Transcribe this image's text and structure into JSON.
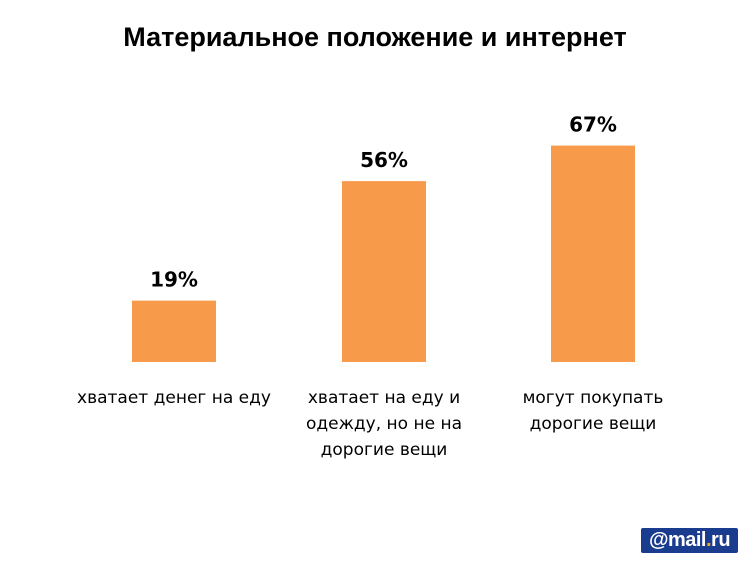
{
  "chart_data": {
    "type": "bar",
    "title": "Материальное положение и интернет",
    "categories": [
      "хватает денег на еду",
      "хватает на еду и одежду, но не на дорогие вещи",
      "могут покупать дорогие вещи"
    ],
    "values": [
      19,
      56,
      67
    ],
    "data_labels": [
      "19%",
      "56%",
      "67%"
    ],
    "unit": "%",
    "ylim": [
      0,
      100
    ],
    "bar_color": "#F79A4A",
    "grid": false
  },
  "logo": {
    "text": "@mail.ru",
    "bg": "#1A3C8E"
  }
}
